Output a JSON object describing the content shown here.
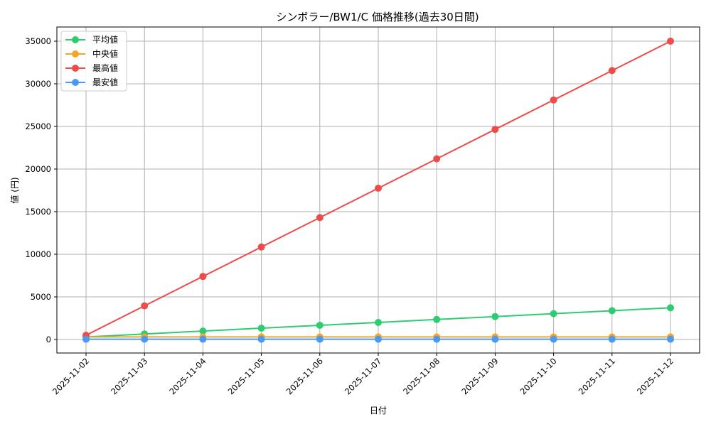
{
  "chart_data": {
    "type": "line",
    "title": "シンボラー/BW1/C 価格推移(過去30日間)",
    "xlabel": "日付",
    "ylabel": "値 (円)",
    "categories": [
      "2025-11-02",
      "2025-11-03",
      "2025-11-04",
      "2025-11-05",
      "2025-11-06",
      "2025-11-07",
      "2025-11-08",
      "2025-11-09",
      "2025-11-10",
      "2025-11-11",
      "2025-11-12"
    ],
    "yticks": [
      0,
      5000,
      10000,
      15000,
      20000,
      25000,
      30000,
      35000
    ],
    "ylim": [
      -1800,
      36700
    ],
    "grid": true,
    "legend_position": "upper left",
    "series": [
      {
        "name": "平均値",
        "color": "#2ecc71",
        "values": [
          300,
          650,
          990,
          1330,
          1670,
          2000,
          2350,
          2690,
          3030,
          3380,
          3720
        ]
      },
      {
        "name": "中央値",
        "color": "#f5a623",
        "values": [
          300,
          300,
          300,
          300,
          300,
          300,
          300,
          300,
          300,
          300,
          300
        ]
      },
      {
        "name": "最高値",
        "color": "#f04b4b",
        "values": [
          500,
          3950,
          7400,
          10850,
          14300,
          17750,
          21200,
          24650,
          28100,
          31550,
          35000
        ]
      },
      {
        "name": "最安値",
        "color": "#4a9af5",
        "values": [
          30,
          30,
          30,
          30,
          30,
          30,
          30,
          30,
          30,
          30,
          30
        ]
      }
    ]
  }
}
